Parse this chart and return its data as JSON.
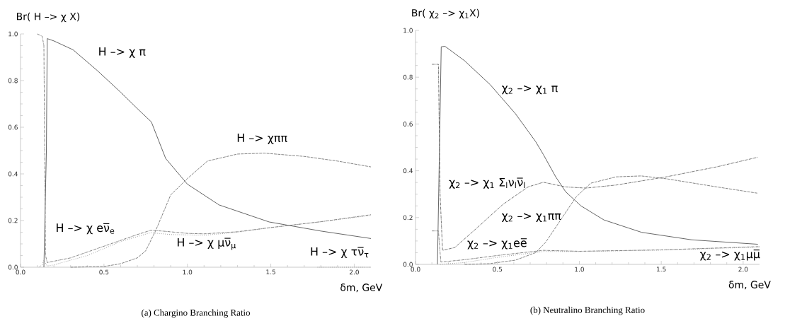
{
  "chart_data": [
    {
      "type": "line",
      "ylabel": "Br( H –> χ X)",
      "xlabel": "δm, GeV",
      "annotations": [
        "(a) Chargino Branching Ratio"
      ],
      "xlim": [
        0,
        2.1
      ],
      "ylim": [
        0,
        1.0
      ],
      "xticks": [
        {
          "value": 0,
          "label": "0.0"
        },
        {
          "value": 0.5,
          "label": "0.5"
        },
        {
          "value": 1.0,
          "label": "1.0"
        },
        {
          "value": 1.5,
          "label": "1.5"
        },
        {
          "value": 2.0,
          "label": "2.0"
        }
      ],
      "yticks": [
        {
          "value": 0,
          "label": "0.0"
        },
        {
          "value": 0.2,
          "label": "0.2"
        },
        {
          "value": 0.4,
          "label": "0.4"
        },
        {
          "value": 0.6,
          "label": "0.6"
        },
        {
          "value": 0.8,
          "label": "0.8"
        },
        {
          "value": 1.0,
          "label": "1.0"
        }
      ],
      "legend": false,
      "grid": false,
      "series": [
        {
          "name": "H –> χ π",
          "color": "#555555",
          "line_style": "solid",
          "x": [
            0.14,
            0.155,
            0.16,
            0.2,
            0.315,
            0.46,
            0.6,
            0.7,
            0.784,
            0.87,
            1.0,
            1.19,
            1.49,
            1.8,
            2.1
          ],
          "values": [
            0,
            0.5,
            0.98,
            0.97,
            0.932,
            0.843,
            0.75,
            0.68,
            0.623,
            0.466,
            0.356,
            0.267,
            0.194,
            0.155,
            0.123
          ]
        },
        {
          "name": "H –> χππ",
          "color": "#777777",
          "line_style": "dashed",
          "x": [
            0.3,
            0.5,
            0.6,
            0.7,
            0.75,
            0.81,
            0.9,
            1.0,
            1.12,
            1.3,
            1.46,
            1.7,
            1.9,
            2.1
          ],
          "values": [
            0,
            0.003,
            0.015,
            0.04,
            0.07,
            0.157,
            0.31,
            0.38,
            0.455,
            0.485,
            0.489,
            0.475,
            0.455,
            0.43
          ]
        },
        {
          "name": "H –> χ eν̅$_{e}$",
          "color": "#777777",
          "line_style": "dashdot",
          "x": [
            0.1,
            0.13,
            0.14,
            0.145,
            0.15,
            0.16,
            0.3,
            0.5,
            0.7,
            0.78,
            0.85,
            1.0,
            1.1,
            1.3,
            1.5,
            1.8,
            2.1
          ],
          "values": [
            1.0,
            0.99,
            0.95,
            0.5,
            0.05,
            0.02,
            0.04,
            0.09,
            0.14,
            0.158,
            0.155,
            0.145,
            0.143,
            0.152,
            0.17,
            0.195,
            0.225
          ]
        },
        {
          "name": "H –> χ μν̅$_{μ}$",
          "color": "#888888",
          "line_style": "dotted",
          "x": [
            0.11,
            0.13,
            0.14,
            0.16,
            0.2,
            0.4,
            0.6,
            0.78,
            0.9,
            1.1,
            1.3,
            1.5,
            1.8,
            2.1
          ],
          "values": [
            0,
            0.01,
            0.03,
            0.005,
            0.01,
            0.05,
            0.11,
            0.148,
            0.14,
            0.137,
            0.15,
            0.17,
            0.195,
            0.222
          ]
        },
        {
          "name": "H –> χ τν̅$_{τ}$",
          "color": "#888888",
          "line_style": "dotted",
          "x": [
            1.78,
            1.9,
            2.1
          ],
          "values": [
            0,
            0,
            0
          ]
        }
      ]
    },
    {
      "type": "line",
      "ylabel": "Br( χ$_{2}$ –> χ$_{1}$X)",
      "xlabel": "δm, GeV",
      "annotations": [
        "(b) Neutralino Branching Ratio"
      ],
      "xlim": [
        0,
        2.1
      ],
      "ylim": [
        0,
        1.0
      ],
      "xticks": [
        {
          "value": 0,
          "label": "0.0"
        },
        {
          "value": 0.5,
          "label": "0.5"
        },
        {
          "value": 1.0,
          "label": "1.0"
        },
        {
          "value": 1.5,
          "label": "1.5"
        },
        {
          "value": 2.0,
          "label": "2.0"
        }
      ],
      "yticks": [
        {
          "value": 0,
          "label": "0.0"
        },
        {
          "value": 0.2,
          "label": "0.2"
        },
        {
          "value": 0.4,
          "label": "0.4"
        },
        {
          "value": 0.6,
          "label": "0.6"
        },
        {
          "value": 0.8,
          "label": "0.8"
        },
        {
          "value": 1.0,
          "label": "1.0"
        }
      ],
      "legend": false,
      "grid": false,
      "series": [
        {
          "name": "χ$_{2}$ –> χ$_{1}$ π",
          "color": "#555555",
          "line_style": "solid",
          "x": [
            0.134,
            0.157,
            0.18,
            0.3,
            0.456,
            0.61,
            0.733,
            0.78,
            0.856,
            0.917,
            1.01,
            1.15,
            1.38,
            1.685,
            2.09
          ],
          "values": [
            0,
            0.93,
            0.932,
            0.87,
            0.768,
            0.644,
            0.525,
            0.47,
            0.374,
            0.31,
            0.25,
            0.19,
            0.137,
            0.105,
            0.086
          ]
        },
        {
          "name": "χ$_{2}$ –> χ$_{1}$ππ",
          "color": "#777777",
          "line_style": "dashed",
          "x": [
            0.3,
            0.45,
            0.61,
            0.733,
            0.794,
            0.886,
            0.98,
            1.07,
            1.224,
            1.378,
            1.53,
            1.84,
            2.09
          ],
          "values": [
            0,
            0.003,
            0.018,
            0.05,
            0.094,
            0.19,
            0.288,
            0.347,
            0.374,
            0.378,
            0.366,
            0.331,
            0.304
          ]
        },
        {
          "name": "χ$_{2}$ –> χ$_{1}$ Σ$_{l}$ν$_{l}$ν̅$_{l}$",
          "color": "#666666",
          "line_style": "dashdot",
          "x": [
            0.1,
            0.14,
            0.15,
            0.165,
            0.24,
            0.38,
            0.533,
            0.687,
            0.78,
            0.917,
            1.04,
            1.224,
            1.53,
            1.84,
            2.09
          ],
          "values": [
            0.855,
            0.855,
            0.3,
            0.06,
            0.072,
            0.159,
            0.256,
            0.331,
            0.351,
            0.331,
            0.326,
            0.339,
            0.374,
            0.417,
            0.458
          ]
        },
        {
          "name": "χ$_{2}$ –> χ$_{1}$ee̅",
          "color": "#777777",
          "line_style": "dashdot",
          "x": [
            0.1,
            0.14,
            0.15,
            0.155,
            0.3,
            0.5,
            0.78,
            1.0,
            1.5,
            2.1
          ],
          "values": [
            0.143,
            0.143,
            0.05,
            0.01,
            0.02,
            0.038,
            0.06,
            0.056,
            0.062,
            0.076
          ]
        },
        {
          "name": "χ$_{2}$ –> χ$_{1}$μμ̅",
          "color": "#888888",
          "line_style": "dotted",
          "x": [
            0.15,
            0.3,
            0.5,
            0.78,
            1.0,
            1.5,
            2.1
          ],
          "values": [
            0,
            0.008,
            0.03,
            0.055,
            0.055,
            0.061,
            0.074
          ]
        }
      ]
    }
  ]
}
